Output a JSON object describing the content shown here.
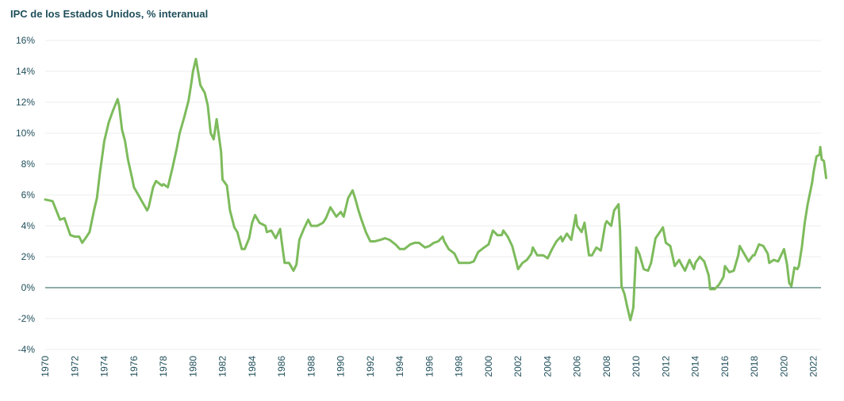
{
  "chart_data": {
    "type": "line",
    "title": "IPC de los Estados Unidos, % interanual",
    "xlabel": "",
    "ylabel": "",
    "ylim": [
      -4,
      16
    ],
    "y_ticks": [
      16,
      14,
      12,
      10,
      8,
      6,
      4,
      2,
      0,
      -2,
      -4
    ],
    "y_tick_labels": [
      "16%",
      "14%",
      "12%",
      "10%",
      "8%",
      "6%",
      "4%",
      "2%",
      "0%",
      "-2%",
      "-4%"
    ],
    "x_range": [
      1970,
      2022.5
    ],
    "x_ticks": [
      1970,
      1972,
      1974,
      1976,
      1978,
      1980,
      1982,
      1984,
      1986,
      1988,
      1990,
      1992,
      1994,
      1996,
      1998,
      2000,
      2002,
      2004,
      2006,
      2008,
      2010,
      2012,
      2014,
      2016,
      2018,
      2020,
      2022
    ],
    "x_tick_labels": [
      "1970",
      "1972",
      "1974",
      "1976",
      "1978",
      "1980",
      "1982",
      "1984",
      "1986",
      "1988",
      "1990",
      "1992",
      "1994",
      "1996",
      "1998",
      "2000",
      "2002",
      "2004",
      "2006",
      "2008",
      "2010",
      "2012",
      "2014",
      "2016",
      "2018",
      "2020",
      "2022"
    ],
    "grid": true,
    "colors": {
      "series": "#7dbb5c",
      "zero_line": "#1f5a50",
      "text": "#1f4e5a",
      "grid": "#ececec"
    },
    "series": [
      {
        "points": [
          [
            1970.0,
            5.7
          ],
          [
            1970.5,
            5.6
          ],
          [
            1971.0,
            4.4
          ],
          [
            1971.3,
            4.5
          ],
          [
            1971.7,
            3.4
          ],
          [
            1972.0,
            3.3
          ],
          [
            1972.3,
            3.3
          ],
          [
            1972.5,
            2.9
          ],
          [
            1972.8,
            3.3
          ],
          [
            1973.0,
            3.6
          ],
          [
            1973.3,
            5.0
          ],
          [
            1973.5,
            5.8
          ],
          [
            1973.7,
            7.4
          ],
          [
            1974.0,
            9.5
          ],
          [
            1974.3,
            10.7
          ],
          [
            1974.6,
            11.5
          ],
          [
            1974.9,
            12.2
          ],
          [
            1975.0,
            11.8
          ],
          [
            1975.2,
            10.2
          ],
          [
            1975.4,
            9.5
          ],
          [
            1975.6,
            8.3
          ],
          [
            1975.9,
            7.0
          ],
          [
            1976.0,
            6.5
          ],
          [
            1976.3,
            6.0
          ],
          [
            1976.6,
            5.5
          ],
          [
            1976.9,
            5.0
          ],
          [
            1977.0,
            5.2
          ],
          [
            1977.3,
            6.5
          ],
          [
            1977.5,
            6.9
          ],
          [
            1977.9,
            6.6
          ],
          [
            1978.0,
            6.7
          ],
          [
            1978.3,
            6.5
          ],
          [
            1978.6,
            7.7
          ],
          [
            1978.9,
            9.0
          ],
          [
            1979.1,
            10.0
          ],
          [
            1979.4,
            11.0
          ],
          [
            1979.7,
            12.1
          ],
          [
            1979.9,
            13.3
          ],
          [
            1980.0,
            14.0
          ],
          [
            1980.2,
            14.8
          ],
          [
            1980.5,
            13.1
          ],
          [
            1980.8,
            12.6
          ],
          [
            1981.0,
            11.8
          ],
          [
            1981.2,
            10.0
          ],
          [
            1981.4,
            9.6
          ],
          [
            1981.6,
            10.9
          ],
          [
            1981.9,
            8.8
          ],
          [
            1982.0,
            7.0
          ],
          [
            1982.3,
            6.6
          ],
          [
            1982.5,
            5.0
          ],
          [
            1982.8,
            3.9
          ],
          [
            1983.0,
            3.6
          ],
          [
            1983.3,
            2.5
          ],
          [
            1983.5,
            2.5
          ],
          [
            1983.8,
            3.2
          ],
          [
            1984.0,
            4.2
          ],
          [
            1984.2,
            4.7
          ],
          [
            1984.5,
            4.2
          ],
          [
            1984.9,
            4.0
          ],
          [
            1985.0,
            3.6
          ],
          [
            1985.3,
            3.7
          ],
          [
            1985.6,
            3.2
          ],
          [
            1985.9,
            3.8
          ],
          [
            1986.0,
            3.0
          ],
          [
            1986.2,
            1.6
          ],
          [
            1986.5,
            1.6
          ],
          [
            1986.8,
            1.1
          ],
          [
            1987.0,
            1.5
          ],
          [
            1987.2,
            3.1
          ],
          [
            1987.5,
            3.8
          ],
          [
            1987.8,
            4.4
          ],
          [
            1988.0,
            4.0
          ],
          [
            1988.4,
            4.0
          ],
          [
            1988.8,
            4.2
          ],
          [
            1989.0,
            4.5
          ],
          [
            1989.3,
            5.2
          ],
          [
            1989.7,
            4.6
          ],
          [
            1990.0,
            4.9
          ],
          [
            1990.2,
            4.6
          ],
          [
            1990.5,
            5.8
          ],
          [
            1990.8,
            6.3
          ],
          [
            1991.0,
            5.7
          ],
          [
            1991.2,
            5.0
          ],
          [
            1991.4,
            4.4
          ],
          [
            1991.7,
            3.6
          ],
          [
            1992.0,
            3.0
          ],
          [
            1992.3,
            3.0
          ],
          [
            1992.7,
            3.1
          ],
          [
            1993.0,
            3.2
          ],
          [
            1993.3,
            3.1
          ],
          [
            1993.7,
            2.8
          ],
          [
            1994.0,
            2.5
          ],
          [
            1994.3,
            2.5
          ],
          [
            1994.7,
            2.8
          ],
          [
            1995.0,
            2.9
          ],
          [
            1995.3,
            2.9
          ],
          [
            1995.7,
            2.6
          ],
          [
            1996.0,
            2.7
          ],
          [
            1996.3,
            2.9
          ],
          [
            1996.6,
            3.0
          ],
          [
            1996.9,
            3.3
          ],
          [
            1997.0,
            3.0
          ],
          [
            1997.3,
            2.5
          ],
          [
            1997.7,
            2.2
          ],
          [
            1998.0,
            1.6
          ],
          [
            1998.3,
            1.6
          ],
          [
            1998.7,
            1.6
          ],
          [
            1999.0,
            1.7
          ],
          [
            1999.3,
            2.3
          ],
          [
            1999.7,
            2.6
          ],
          [
            2000.0,
            2.8
          ],
          [
            2000.3,
            3.7
          ],
          [
            2000.6,
            3.4
          ],
          [
            2000.9,
            3.4
          ],
          [
            2001.0,
            3.7
          ],
          [
            2001.3,
            3.3
          ],
          [
            2001.6,
            2.7
          ],
          [
            2001.9,
            1.6
          ],
          [
            2002.0,
            1.2
          ],
          [
            2002.3,
            1.6
          ],
          [
            2002.6,
            1.8
          ],
          [
            2002.9,
            2.2
          ],
          [
            2003.0,
            2.6
          ],
          [
            2003.3,
            2.1
          ],
          [
            2003.7,
            2.1
          ],
          [
            2004.0,
            1.9
          ],
          [
            2004.3,
            2.5
          ],
          [
            2004.6,
            3.0
          ],
          [
            2004.9,
            3.3
          ],
          [
            2005.0,
            3.0
          ],
          [
            2005.3,
            3.5
          ],
          [
            2005.6,
            3.1
          ],
          [
            2005.9,
            4.7
          ],
          [
            2006.0,
            4.0
          ],
          [
            2006.3,
            3.6
          ],
          [
            2006.5,
            4.2
          ],
          [
            2006.8,
            2.1
          ],
          [
            2007.0,
            2.1
          ],
          [
            2007.3,
            2.6
          ],
          [
            2007.6,
            2.4
          ],
          [
            2007.9,
            4.1
          ],
          [
            2008.0,
            4.3
          ],
          [
            2008.3,
            4.0
          ],
          [
            2008.5,
            5.0
          ],
          [
            2008.8,
            5.4
          ],
          [
            2008.9,
            3.7
          ],
          [
            2009.0,
            0.1
          ],
          [
            2009.2,
            -0.4
          ],
          [
            2009.4,
            -1.3
          ],
          [
            2009.6,
            -2.1
          ],
          [
            2009.8,
            -1.3
          ],
          [
            2010.0,
            2.6
          ],
          [
            2010.2,
            2.2
          ],
          [
            2010.5,
            1.2
          ],
          [
            2010.8,
            1.1
          ],
          [
            2011.0,
            1.6
          ],
          [
            2011.3,
            3.2
          ],
          [
            2011.6,
            3.6
          ],
          [
            2011.8,
            3.9
          ],
          [
            2012.0,
            2.9
          ],
          [
            2012.3,
            2.7
          ],
          [
            2012.6,
            1.4
          ],
          [
            2012.9,
            1.8
          ],
          [
            2013.0,
            1.6
          ],
          [
            2013.3,
            1.1
          ],
          [
            2013.6,
            1.8
          ],
          [
            2013.9,
            1.2
          ],
          [
            2014.0,
            1.6
          ],
          [
            2014.3,
            2.0
          ],
          [
            2014.6,
            1.7
          ],
          [
            2014.9,
            0.8
          ],
          [
            2015.0,
            -0.1
          ],
          [
            2015.3,
            -0.1
          ],
          [
            2015.6,
            0.2
          ],
          [
            2015.9,
            0.7
          ],
          [
            2016.0,
            1.4
          ],
          [
            2016.3,
            1.0
          ],
          [
            2016.6,
            1.1
          ],
          [
            2016.9,
            2.1
          ],
          [
            2017.0,
            2.7
          ],
          [
            2017.3,
            2.2
          ],
          [
            2017.6,
            1.7
          ],
          [
            2017.9,
            2.1
          ],
          [
            2018.0,
            2.1
          ],
          [
            2018.3,
            2.8
          ],
          [
            2018.6,
            2.7
          ],
          [
            2018.9,
            2.2
          ],
          [
            2019.0,
            1.6
          ],
          [
            2019.3,
            1.8
          ],
          [
            2019.6,
            1.7
          ],
          [
            2019.9,
            2.3
          ],
          [
            2020.0,
            2.5
          ],
          [
            2020.2,
            1.5
          ],
          [
            2020.35,
            0.3
          ],
          [
            2020.5,
            0.1
          ],
          [
            2020.7,
            1.3
          ],
          [
            2020.9,
            1.2
          ],
          [
            2021.0,
            1.4
          ],
          [
            2021.2,
            2.6
          ],
          [
            2021.4,
            4.2
          ],
          [
            2021.6,
            5.4
          ],
          [
            2021.9,
            6.8
          ],
          [
            2022.0,
            7.5
          ],
          [
            2022.2,
            8.5
          ],
          [
            2022.4,
            8.6
          ],
          [
            2022.45,
            9.1
          ],
          [
            2022.55,
            8.3
          ],
          [
            2022.7,
            8.2
          ],
          [
            2022.85,
            7.1
          ]
        ]
      }
    ]
  }
}
